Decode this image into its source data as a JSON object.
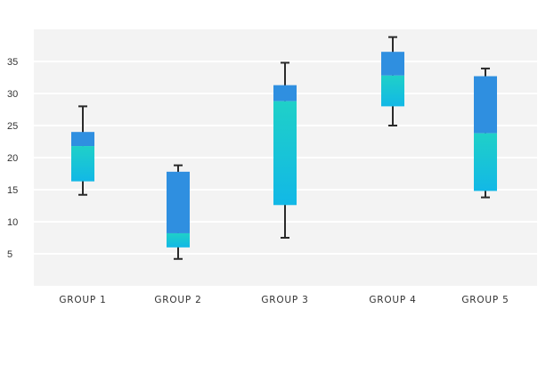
{
  "chart_data": {
    "type": "box",
    "title": "",
    "xlabel": "",
    "ylabel": "",
    "categories": [
      "GROUP 1",
      "GROUP 2",
      "GROUP 3",
      "GROUP 4",
      "GROUP 5"
    ],
    "boxes": [
      {
        "whisker_low": 14.2,
        "q1": 16.3,
        "median": 21.8,
        "q3": 24.0,
        "whisker_high": 28.0
      },
      {
        "whisker_low": 4.2,
        "q1": 6.0,
        "median": 8.2,
        "q3": 17.8,
        "whisker_high": 18.8
      },
      {
        "whisker_low": 7.5,
        "q1": 12.6,
        "median": 28.8,
        "q3": 31.3,
        "whisker_high": 34.8
      },
      {
        "whisker_low": 25.0,
        "q1": 28.0,
        "median": 32.8,
        "q3": 36.5,
        "whisker_high": 38.8
      },
      {
        "whisker_low": 13.8,
        "q1": 14.8,
        "median": 23.8,
        "q3": 32.7,
        "whisker_high": 33.9
      }
    ],
    "yticks": [
      5,
      10,
      15,
      20,
      25,
      30,
      35
    ],
    "ylim": [
      0,
      40
    ],
    "grid": true,
    "legend": "none",
    "colors": {
      "plot_background": "#f3f3f3",
      "gridline": "#ffffff",
      "upper_box": "#2f8fe0",
      "lower_box_top": "#1fd0c8",
      "lower_box_bottom": "#12b8e6",
      "whisker": "#2a2a2a"
    }
  }
}
